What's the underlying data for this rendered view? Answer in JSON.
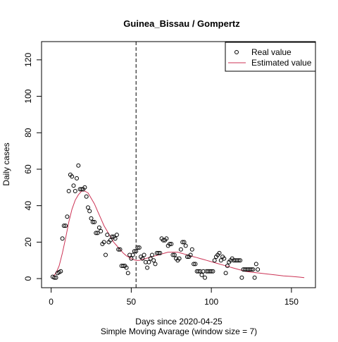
{
  "chart_data": {
    "type": "scatter",
    "title": "Guinea_Bissau / Gompertz",
    "xlabel": "Days since 2020-04-25",
    "xlabel2": "Simple Moving Avarage (window size = 7)",
    "ylabel": "Daily cases",
    "xlim": [
      -6,
      165
    ],
    "ylim": [
      -5,
      130
    ],
    "xticks": [
      0,
      50,
      100,
      150
    ],
    "yticks": [
      0,
      20,
      40,
      60,
      80,
      100,
      120
    ],
    "grid": false,
    "legend_position": "top-right",
    "vline": {
      "x": 53,
      "style": "dashed",
      "color": "#000000"
    },
    "series": [
      {
        "name": "Real value",
        "kind": "points",
        "color": "#000000",
        "x": [
          1,
          2,
          3,
          4,
          5,
          6,
          7,
          8,
          9,
          10,
          11,
          12,
          13,
          14,
          15,
          16,
          17,
          18,
          19,
          20,
          21,
          22,
          23,
          24,
          25,
          26,
          27,
          28,
          29,
          30,
          31,
          32,
          33,
          34,
          35,
          36,
          37,
          38,
          39,
          40,
          41,
          42,
          43,
          44,
          45,
          46,
          47,
          48,
          49,
          50,
          51,
          52,
          53,
          54,
          55,
          56,
          57,
          58,
          59,
          60,
          61,
          62,
          63,
          64,
          65,
          66,
          67,
          68,
          69,
          70,
          71,
          72,
          73,
          74,
          75,
          76,
          77,
          78,
          79,
          80,
          81,
          82,
          83,
          84,
          85,
          86,
          87,
          88,
          89,
          90,
          91,
          92,
          93,
          94,
          95,
          96,
          97,
          98,
          99,
          100,
          101,
          102,
          103,
          104,
          105,
          106,
          107,
          108,
          109,
          110,
          111,
          112,
          113,
          114,
          115,
          116,
          117,
          118,
          119,
          120,
          121,
          122,
          123,
          124,
          125,
          126,
          127,
          128,
          129
        ],
        "y": [
          1,
          0.5,
          0.5,
          3,
          3.5,
          4,
          22,
          29,
          29,
          34,
          48,
          57,
          56,
          51,
          48,
          55,
          62,
          49,
          49,
          49,
          50,
          45,
          39,
          37,
          33,
          31,
          31,
          25,
          25,
          28,
          26,
          19,
          20,
          13,
          24,
          20,
          21,
          23,
          23,
          22,
          24,
          16,
          16,
          7,
          7,
          7,
          6,
          3,
          13,
          11,
          13,
          15,
          15,
          17,
          17,
          12,
          11,
          13,
          9,
          6,
          9,
          11,
          13,
          10,
          8,
          14,
          14,
          14,
          22,
          21,
          21,
          22,
          18,
          19,
          19,
          13,
          13,
          11,
          10,
          11,
          16,
          20,
          20,
          18,
          12,
          12,
          13,
          16,
          8,
          8,
          4,
          4,
          4,
          2,
          4,
          0.5,
          4,
          4,
          4,
          4,
          4,
          10,
          12,
          13,
          14,
          10,
          12,
          11,
          3,
          7,
          9,
          10,
          11,
          10,
          10,
          10,
          10,
          10,
          0.5,
          5,
          5,
          5,
          5,
          5,
          5,
          5,
          0.5,
          8,
          5
        ]
      },
      {
        "name": "Estimated value",
        "kind": "line",
        "color": "#cc3355",
        "x": [
          1,
          3,
          5,
          7,
          9,
          11,
          13,
          15,
          17,
          19,
          21,
          23,
          25,
          27,
          29,
          31,
          33,
          35,
          37,
          39,
          41,
          43,
          45,
          47,
          49,
          51,
          53,
          55,
          57,
          59,
          61,
          63,
          65,
          67,
          69,
          71,
          73,
          75,
          77,
          79,
          81,
          83,
          85,
          87,
          89,
          91,
          93,
          95,
          97,
          99,
          101,
          103,
          105,
          107,
          109,
          111,
          113,
          115,
          117,
          119,
          121,
          125,
          130,
          135,
          140,
          145,
          150,
          155,
          158
        ],
        "y": [
          1,
          3,
          7,
          14,
          22,
          31,
          38,
          43,
          46,
          48,
          48,
          47,
          44,
          41,
          37,
          33,
          29,
          26,
          23,
          20,
          18,
          16,
          14,
          12.5,
          11.5,
          10.5,
          10,
          10,
          10.5,
          11,
          11.5,
          12,
          12.5,
          13,
          13.5,
          14,
          14.5,
          14.5,
          14.5,
          14.5,
          14,
          13.5,
          13,
          12.5,
          12,
          11.5,
          11,
          10.5,
          10,
          9.5,
          9,
          8.5,
          8,
          7.5,
          7,
          6.5,
          6,
          5.5,
          5,
          4.5,
          4,
          3.5,
          3,
          2.5,
          2,
          1.5,
          1.2,
          0.8,
          0.5
        ]
      }
    ]
  }
}
